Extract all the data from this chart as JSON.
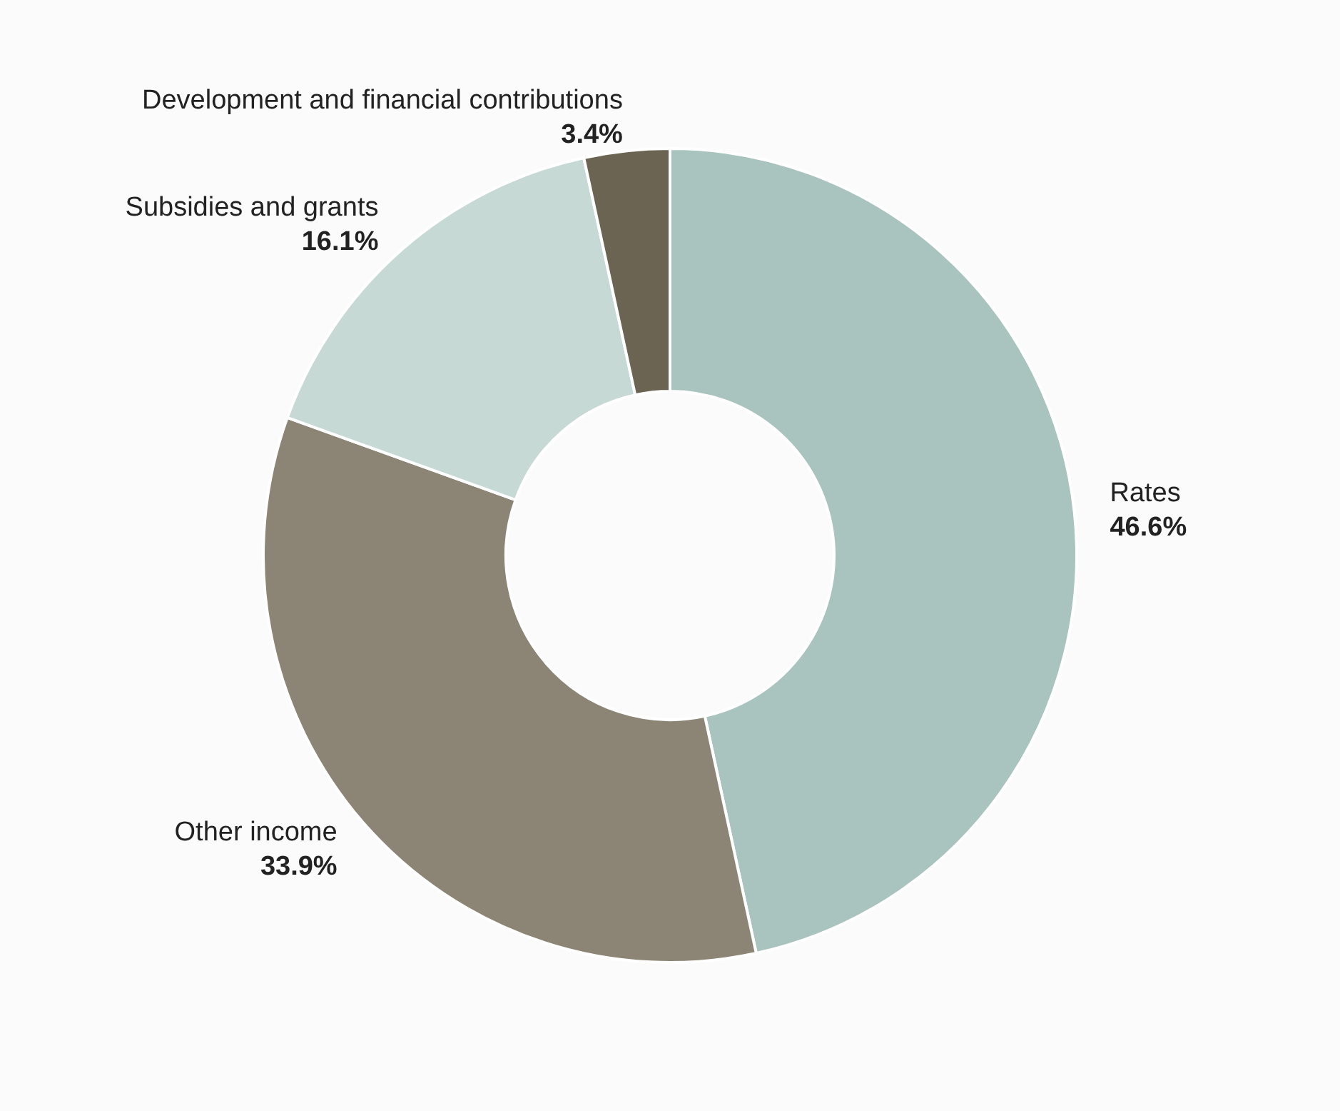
{
  "chart_data": {
    "type": "donut",
    "categories": [
      "Rates",
      "Other income",
      "Subsidies and grants",
      "Development and financial contributions"
    ],
    "values": [
      46.6,
      33.9,
      16.1,
      3.4
    ],
    "value_labels": [
      "46.6%",
      "33.9%",
      "16.1%",
      "3.4%"
    ],
    "colors": [
      "#a9c3be",
      "#8c8575",
      "#c6d9d5",
      "#6b6452"
    ],
    "legend": false
  }
}
